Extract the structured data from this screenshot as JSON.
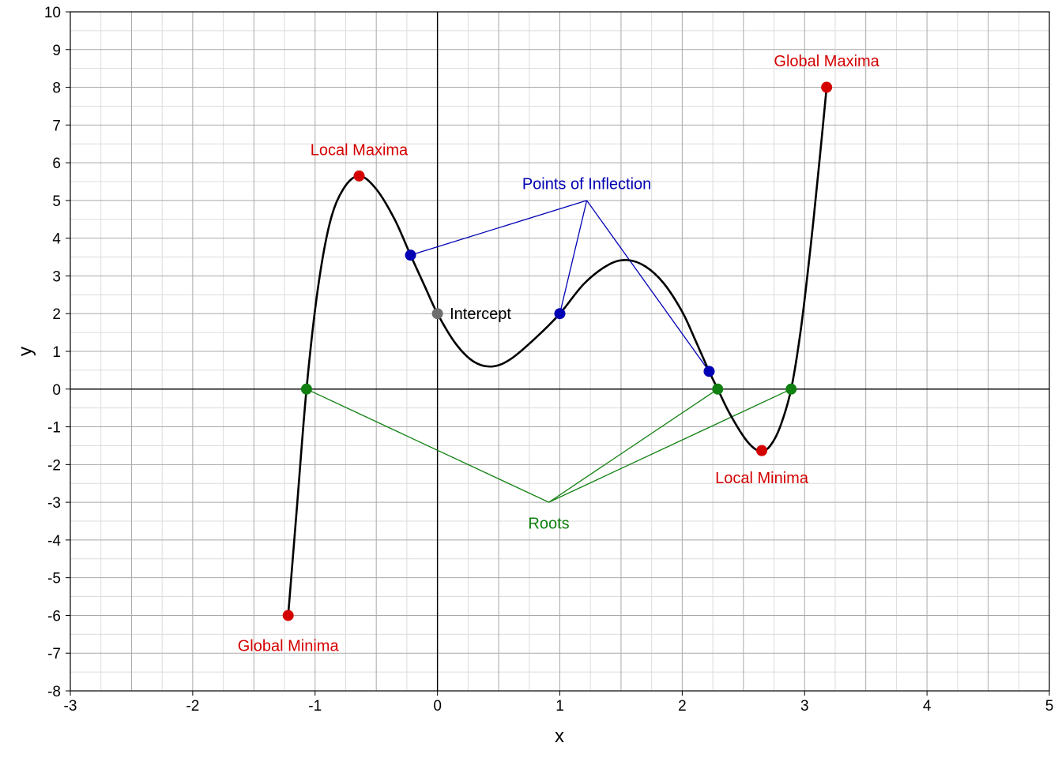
{
  "chart_data": {
    "type": "line",
    "xlabel": "x",
    "ylabel": "y",
    "xlim": [
      -3,
      5
    ],
    "ylim": [
      -8,
      10
    ],
    "x_ticks": [
      "-3",
      "-2",
      "-1",
      "0",
      "1",
      "2",
      "3",
      "4",
      "5"
    ],
    "y_ticks": [
      "10",
      "9",
      "8",
      "7",
      "6",
      "5",
      "4",
      "3",
      "2",
      "1",
      "0",
      "-1",
      "-2",
      "-3",
      "-4",
      "-5",
      "-6",
      "-7",
      "-8"
    ],
    "grid": true,
    "curve": [
      {
        "x": -1.22,
        "y": -6.0
      },
      {
        "x": -1.15,
        "y": -3.2
      },
      {
        "x": -1.07,
        "y": 0.0
      },
      {
        "x": -0.98,
        "y": 2.6
      },
      {
        "x": -0.88,
        "y": 4.4
      },
      {
        "x": -0.77,
        "y": 5.3
      },
      {
        "x": -0.64,
        "y": 5.65
      },
      {
        "x": -0.5,
        "y": 5.3
      },
      {
        "x": -0.35,
        "y": 4.5
      },
      {
        "x": -0.22,
        "y": 3.55
      },
      {
        "x": -0.1,
        "y": 2.7
      },
      {
        "x": 0.0,
        "y": 2.0
      },
      {
        "x": 0.15,
        "y": 1.2
      },
      {
        "x": 0.3,
        "y": 0.72
      },
      {
        "x": 0.45,
        "y": 0.6
      },
      {
        "x": 0.6,
        "y": 0.8
      },
      {
        "x": 0.8,
        "y": 1.35
      },
      {
        "x": 1.0,
        "y": 2.0
      },
      {
        "x": 1.2,
        "y": 2.8
      },
      {
        "x": 1.4,
        "y": 3.3
      },
      {
        "x": 1.55,
        "y": 3.42
      },
      {
        "x": 1.7,
        "y": 3.25
      },
      {
        "x": 1.85,
        "y": 2.8
      },
      {
        "x": 2.0,
        "y": 2.05
      },
      {
        "x": 2.1,
        "y": 1.35
      },
      {
        "x": 2.22,
        "y": 0.47
      },
      {
        "x": 2.29,
        "y": 0.0
      },
      {
        "x": 2.38,
        "y": -0.6
      },
      {
        "x": 2.5,
        "y": -1.25
      },
      {
        "x": 2.58,
        "y": -1.55
      },
      {
        "x": 2.65,
        "y": -1.65
      },
      {
        "x": 2.72,
        "y": -1.5
      },
      {
        "x": 2.8,
        "y": -1.0
      },
      {
        "x": 2.89,
        "y": 0.0
      },
      {
        "x": 2.97,
        "y": 1.6
      },
      {
        "x": 3.05,
        "y": 3.8
      },
      {
        "x": 3.12,
        "y": 6.0
      },
      {
        "x": 3.18,
        "y": 8.0
      }
    ],
    "annotations": {
      "global_maxima": {
        "label": "Global Maxima",
        "color": "#d40000",
        "point": {
          "x": 3.18,
          "y": 8.0
        },
        "text_at": {
          "x": 3.18,
          "y": 8.7
        }
      },
      "local_maxima": {
        "label": "Local Maxima",
        "color": "#d40000",
        "point": {
          "x": -0.64,
          "y": 5.65
        },
        "text_at": {
          "x": -0.64,
          "y": 6.35
        }
      },
      "local_minima": {
        "label": "Local Minima",
        "color": "#d40000",
        "point": {
          "x": 2.65,
          "y": -1.63
        },
        "text_at": {
          "x": 2.65,
          "y": -2.35
        }
      },
      "global_minima": {
        "label": "Global Minima",
        "color": "#d40000",
        "point": {
          "x": -1.22,
          "y": -6.0
        },
        "text_at": {
          "x": -1.22,
          "y": -6.8
        }
      },
      "intercept": {
        "label": "Intercept",
        "color": "#6e6e6e",
        "point": {
          "x": 0.0,
          "y": 2.0
        },
        "text_at": {
          "x": 0.1,
          "y": 2.0
        }
      },
      "inflection": {
        "label": "Points of Inflection",
        "color": "#0000b4",
        "hub": {
          "x": 1.22,
          "y": 5.0
        },
        "text_at": {
          "x": 1.22,
          "y": 5.45
        },
        "points": [
          {
            "x": -0.22,
            "y": 3.55
          },
          {
            "x": 1.0,
            "y": 2.0
          },
          {
            "x": 2.22,
            "y": 0.47
          }
        ]
      },
      "roots": {
        "label": "Roots",
        "color": "#108010",
        "hub": {
          "x": 0.91,
          "y": -3.0
        },
        "text_at": {
          "x": 0.91,
          "y": -3.55
        },
        "points": [
          {
            "x": -1.07,
            "y": 0.0
          },
          {
            "x": 2.29,
            "y": 0.0
          },
          {
            "x": 2.89,
            "y": 0.0
          }
        ]
      }
    }
  }
}
